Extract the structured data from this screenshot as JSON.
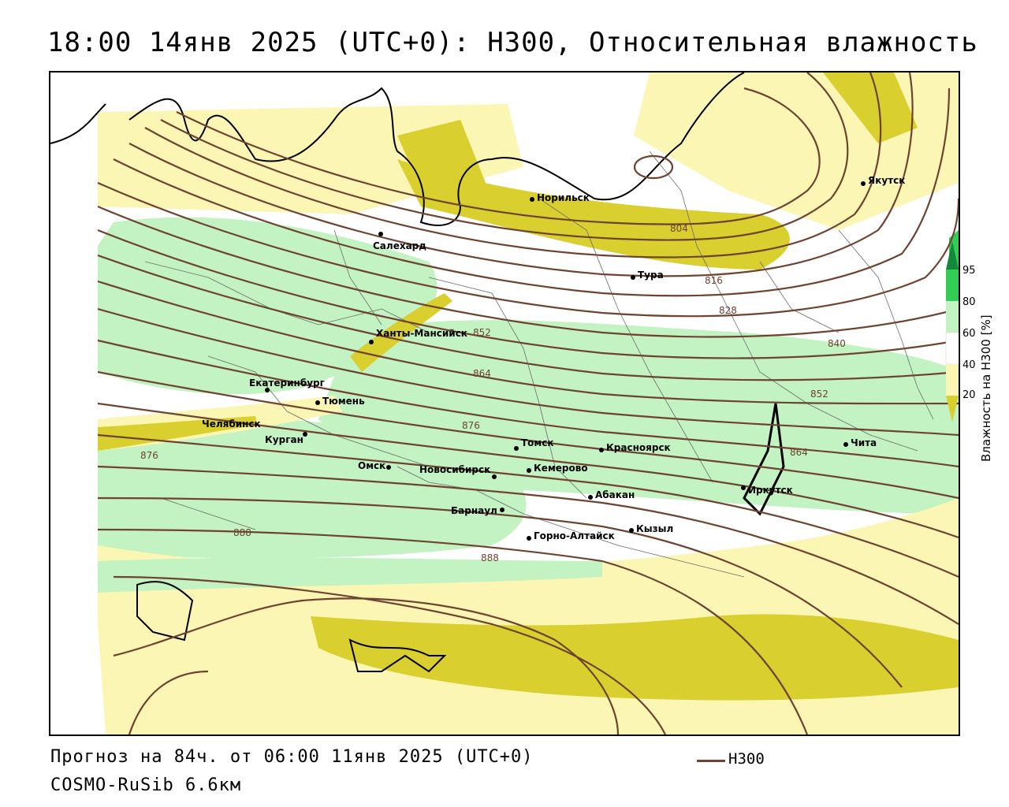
{
  "title": "18:00 14янв 2025 (UTC+0): H300, Относительная влажность",
  "footer": {
    "forecast": "Прогноз на 84ч. от 06:00 11янв 2025 (UTC+0)",
    "model": "COSMO-RuSib 6.6км"
  },
  "legend": {
    "line_label": "H300",
    "line_color": "#6e4332"
  },
  "colorbar": {
    "title": "Влажность на H300 [%]",
    "ticks": [
      "95",
      "80",
      "60",
      "40",
      "20"
    ],
    "colors": {
      "lt20": "#d9cf2e",
      "20_40": "#fbf6b4",
      "40_60": "#ffffff",
      "60_80": "#c3f2c3",
      "80_95": "#33cc55",
      "gt95": "#14883a"
    }
  },
  "cities": [
    {
      "name": "Норильск"
    },
    {
      "name": "Якутск"
    },
    {
      "name": "Салехард"
    },
    {
      "name": "Тура"
    },
    {
      "name": "Ханты-Мансийск"
    },
    {
      "name": "Екатеринбург"
    },
    {
      "name": "Тюмень"
    },
    {
      "name": "Челябинск"
    },
    {
      "name": "Курган"
    },
    {
      "name": "Омск"
    },
    {
      "name": "Новосибирск"
    },
    {
      "name": "Томск"
    },
    {
      "name": "Кемерово"
    },
    {
      "name": "Красноярск"
    },
    {
      "name": "Абакан"
    },
    {
      "name": "Барнаул"
    },
    {
      "name": "Горно-Алтайск"
    },
    {
      "name": "Кызыл"
    },
    {
      "name": "Иркутск"
    },
    {
      "name": "Чита"
    }
  ],
  "contour_labels": [
    "804",
    "816",
    "828",
    "840",
    "852",
    "852",
    "864",
    "864",
    "876",
    "876",
    "888",
    "888"
  ]
}
